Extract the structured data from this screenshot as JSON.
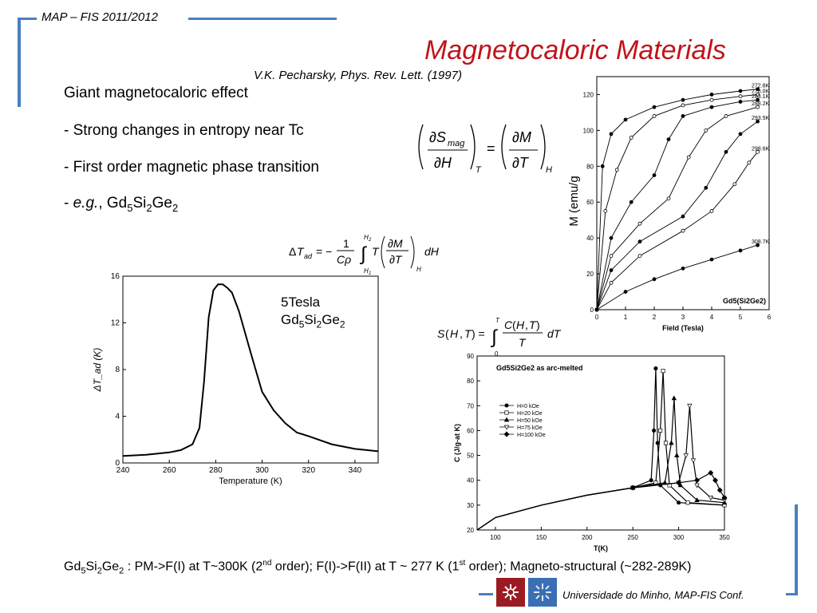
{
  "header": {
    "course_tag": "MAP – FIS 2011/2012"
  },
  "title": "Magnetocaloric Materials",
  "reference": "V.K. Pecharsky, Phys. Rev. Lett. (1997)",
  "bullets": {
    "b1": "Giant magnetocaloric effect",
    "b2": "- Strong changes in entropy near Tc",
    "b3": "- First order magnetic phase transition",
    "b4_prefix": "- ",
    "b4_eg": "e.g.",
    "b4_comma": ", "
  },
  "labels": {
    "tesla": "5Tesla"
  },
  "footer": {
    "note_after": " : PM->F(I) at T~300K (2",
    "note_sup1": "nd",
    "note_mid": " order); F(I)->F(II) at T ~ 277 K (1",
    "note_sup2": "st",
    "note_end": " order); Magneto-structural (~282-289K)",
    "university": "Universidade do Minho, MAP-FIS Conf."
  },
  "chart_data": [
    {
      "type": "line",
      "xlabel": "Temperature (K)",
      "ylabel": "ΔT_ad (K)",
      "xlim": [
        240,
        350
      ],
      "ylim": [
        0,
        16
      ],
      "xticks": [
        240,
        260,
        280,
        300,
        320,
        340
      ],
      "yticks": [
        0,
        4,
        8,
        12,
        16
      ],
      "x": [
        240,
        250,
        260,
        265,
        270,
        273,
        275,
        277,
        279,
        281,
        283,
        285,
        287,
        290,
        295,
        300,
        305,
        310,
        315,
        320,
        330,
        340,
        350
      ],
      "y": [
        0.6,
        0.7,
        0.9,
        1.1,
        1.6,
        3.0,
        7.0,
        12.5,
        14.8,
        15.3,
        15.3,
        15.0,
        14.6,
        13.0,
        9.5,
        6.1,
        4.5,
        3.4,
        2.6,
        2.3,
        1.6,
        1.2,
        1.0
      ]
    },
    {
      "type": "line",
      "xlabel": "Field (Tesla)",
      "ylabel": "M (emu/g",
      "title": "Gd5(Si2Ge2)",
      "xlim": [
        0,
        6
      ],
      "ylim": [
        0,
        130
      ],
      "xticks": [
        0,
        1,
        2,
        3,
        4,
        5,
        6
      ],
      "yticks": [
        0,
        20,
        40,
        60,
        80,
        100,
        120
      ],
      "series": [
        {
          "name": "272.8K",
          "x": [
            0,
            0.2,
            0.5,
            1,
            2,
            3,
            4,
            5,
            5.6
          ],
          "y": [
            0,
            80,
            98,
            106,
            113,
            117,
            120,
            122,
            123
          ]
        },
        {
          "name": "278.0K",
          "x": [
            0,
            0.3,
            0.7,
            1.2,
            2,
            3,
            4,
            5,
            5.6
          ],
          "y": [
            0,
            55,
            78,
            96,
            108,
            114,
            117,
            119,
            120
          ]
        },
        {
          "name": "283.1K",
          "x": [
            0,
            0.5,
            1.2,
            2,
            2.5,
            3,
            4,
            5,
            5.6
          ],
          "y": [
            0,
            40,
            60,
            75,
            95,
            108,
            113,
            116,
            117
          ]
        },
        {
          "name": "288.2K",
          "x": [
            0,
            0.5,
            1.5,
            2.5,
            3.2,
            3.8,
            4.5,
            5.6
          ],
          "y": [
            0,
            30,
            48,
            62,
            85,
            100,
            108,
            113
          ]
        },
        {
          "name": "293.5K",
          "x": [
            0,
            0.5,
            1.5,
            3,
            3.8,
            4.5,
            5,
            5.6
          ],
          "y": [
            0,
            22,
            38,
            52,
            68,
            88,
            98,
            105
          ]
        },
        {
          "name": "298.6K",
          "x": [
            0,
            0.5,
            1.5,
            3,
            4,
            4.8,
            5.3,
            5.6
          ],
          "y": [
            0,
            15,
            30,
            44,
            55,
            70,
            82,
            88
          ]
        },
        {
          "name": "308.7K",
          "x": [
            0,
            1,
            2,
            3,
            4,
            5,
            5.6
          ],
          "y": [
            0,
            10,
            17,
            23,
            28,
            33,
            36
          ]
        }
      ]
    },
    {
      "type": "line",
      "title": "Gd5Si2Ge2 as arc-melted",
      "xlabel": "T(K)",
      "ylabel": "C (J/g-at K)",
      "xlim": [
        80,
        350
      ],
      "ylim": [
        20,
        90
      ],
      "xticks": [
        100,
        150,
        200,
        250,
        300,
        350
      ],
      "yticks": [
        20,
        30,
        40,
        50,
        60,
        70,
        80,
        90
      ],
      "series": [
        {
          "name": "H=0  kOe",
          "x": [
            80,
            100,
            150,
            200,
            250,
            270,
            273,
            275,
            277,
            280,
            300,
            350
          ],
          "y": [
            20,
            25,
            30,
            34,
            37,
            40,
            60,
            85,
            55,
            38,
            31,
            30
          ]
        },
        {
          "name": "H=20  kOe",
          "x": [
            80,
            100,
            150,
            200,
            250,
            275,
            280,
            283,
            286,
            290,
            310,
            350
          ],
          "y": [
            20,
            25,
            30,
            34,
            37,
            39,
            60,
            84,
            55,
            38,
            31,
            30
          ]
        },
        {
          "name": "H=50  kOe",
          "x": [
            80,
            100,
            150,
            200,
            250,
            285,
            292,
            295,
            298,
            302,
            320,
            350
          ],
          "y": [
            20,
            25,
            30,
            34,
            37,
            39,
            55,
            73,
            50,
            38,
            32,
            31
          ]
        },
        {
          "name": "H=75  kOe",
          "x": [
            80,
            100,
            150,
            200,
            250,
            300,
            308,
            312,
            316,
            320,
            335,
            350
          ],
          "y": [
            20,
            25,
            30,
            34,
            37,
            39,
            50,
            70,
            48,
            38,
            33,
            32
          ]
        },
        {
          "name": "H=100 kOe",
          "x": [
            80,
            100,
            150,
            200,
            250,
            300,
            320,
            335,
            340,
            345,
            350
          ],
          "y": [
            20,
            25,
            30,
            34,
            37,
            39,
            40,
            43,
            40,
            36,
            33
          ]
        }
      ]
    }
  ]
}
